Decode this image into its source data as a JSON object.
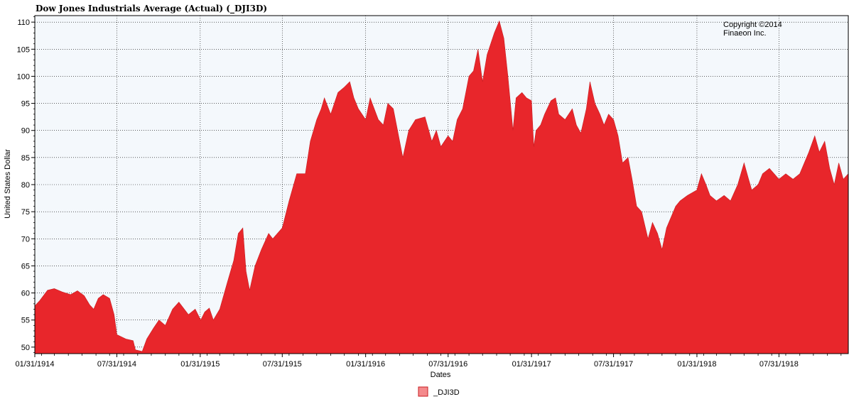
{
  "chart_data": {
    "type": "area",
    "title": "Dow Jones Industrials Average (Actual) (_DJI3D)",
    "xlabel": "Dates",
    "ylabel": "United States Dollar",
    "copyright": [
      "Copyright ©2014",
      "Finaeon Inc."
    ],
    "ylim": [
      48.8,
      111.2
    ],
    "xlim": [
      "1914-01-31",
      "1918-12-31"
    ],
    "yticks": [
      50,
      55,
      60,
      65,
      70,
      75,
      80,
      85,
      90,
      95,
      100,
      105,
      110
    ],
    "xticks": [
      "01/31/1914",
      "07/31/1914",
      "01/31/1915",
      "07/31/1915",
      "01/31/1916",
      "07/31/1916",
      "01/31/1917",
      "07/31/1917",
      "01/31/1918",
      "07/31/1918"
    ],
    "grid": true,
    "legend_placement": "bottom-center",
    "colors": {
      "fill": "#e8262b",
      "legend_swatch": "#f48a8c",
      "plot_bg": "#f4f8fc"
    },
    "series": [
      {
        "name": "_DJI3D",
        "points": [
          [
            "1914-01-31",
            57.6
          ],
          [
            "1914-02-10",
            58.5
          ],
          [
            "1914-02-28",
            60.5
          ],
          [
            "1914-03-15",
            60.8
          ],
          [
            "1914-04-01",
            60.2
          ],
          [
            "1914-04-20",
            59.7
          ],
          [
            "1914-05-05",
            60.4
          ],
          [
            "1914-05-20",
            59.5
          ],
          [
            "1914-06-01",
            57.8
          ],
          [
            "1914-06-10",
            57.0
          ],
          [
            "1914-06-20",
            59.0
          ],
          [
            "1914-07-01",
            59.7
          ],
          [
            "1914-07-15",
            59.0
          ],
          [
            "1914-07-25",
            56.0
          ],
          [
            "1914-07-31",
            52.3
          ],
          [
            "1914-08-20",
            51.5
          ],
          [
            "1914-09-05",
            51.2
          ],
          [
            "1914-09-10",
            49.5
          ],
          [
            "1914-09-25",
            49.2
          ],
          [
            "1914-10-05",
            51.5
          ],
          [
            "1914-10-20",
            53.5
          ],
          [
            "1914-11-01",
            55.0
          ],
          [
            "1914-11-15",
            54.0
          ],
          [
            "1914-12-01",
            57.0
          ],
          [
            "1914-12-15",
            58.3
          ],
          [
            "1915-01-05",
            56.0
          ],
          [
            "1915-01-20",
            57.0
          ],
          [
            "1915-02-01",
            55.0
          ],
          [
            "1915-02-10",
            56.5
          ],
          [
            "1915-02-20",
            57.2
          ],
          [
            "1915-03-01",
            55.0
          ],
          [
            "1915-03-15",
            57.0
          ],
          [
            "1915-04-01",
            62.0
          ],
          [
            "1915-04-15",
            66.0
          ],
          [
            "1915-04-25",
            71.0
          ],
          [
            "1915-05-05",
            72.0
          ],
          [
            "1915-05-12",
            64.0
          ],
          [
            "1915-05-20",
            60.5
          ],
          [
            "1915-06-01",
            65.0
          ],
          [
            "1915-06-15",
            68.0
          ],
          [
            "1915-07-01",
            71.0
          ],
          [
            "1915-07-10",
            70.0
          ],
          [
            "1915-07-31",
            72.0
          ],
          [
            "1915-08-15",
            77.0
          ],
          [
            "1915-09-01",
            82.0
          ],
          [
            "1915-09-20",
            82.0
          ],
          [
            "1915-10-01",
            88.0
          ],
          [
            "1915-10-15",
            92.0
          ],
          [
            "1915-10-25",
            94.0
          ],
          [
            "1915-11-01",
            96.0
          ],
          [
            "1915-11-15",
            93.0
          ],
          [
            "1915-12-01",
            97.0
          ],
          [
            "1915-12-15",
            98.0
          ],
          [
            "1915-12-27",
            99.0
          ],
          [
            "1916-01-05",
            96.0
          ],
          [
            "1916-01-15",
            94.0
          ],
          [
            "1916-01-31",
            92.0
          ],
          [
            "1916-02-10",
            96.0
          ],
          [
            "1916-02-28",
            92.0
          ],
          [
            "1916-03-10",
            91.0
          ],
          [
            "1916-03-20",
            95.0
          ],
          [
            "1916-04-01",
            94.0
          ],
          [
            "1916-04-22",
            85.0
          ],
          [
            "1916-05-05",
            90.0
          ],
          [
            "1916-05-20",
            92.0
          ],
          [
            "1916-06-10",
            92.5
          ],
          [
            "1916-06-25",
            88.0
          ],
          [
            "1916-07-05",
            90.0
          ],
          [
            "1916-07-15",
            87.0
          ],
          [
            "1916-07-31",
            89.0
          ],
          [
            "1916-08-10",
            88.0
          ],
          [
            "1916-08-20",
            92.0
          ],
          [
            "1916-09-01",
            94.0
          ],
          [
            "1916-09-15",
            100.0
          ],
          [
            "1916-09-25",
            101.0
          ],
          [
            "1916-10-05",
            105.0
          ],
          [
            "1916-10-15",
            99.0
          ],
          [
            "1916-10-25",
            104.0
          ],
          [
            "1916-11-10",
            108.0
          ],
          [
            "1916-11-21",
            110.2
          ],
          [
            "1916-12-01",
            107.0
          ],
          [
            "1916-12-10",
            100.0
          ],
          [
            "1916-12-21",
            90.0
          ],
          [
            "1916-12-28",
            96.0
          ],
          [
            "1917-01-10",
            97.0
          ],
          [
            "1917-01-20",
            96.0
          ],
          [
            "1917-01-31",
            95.5
          ],
          [
            "1917-02-05",
            87.0
          ],
          [
            "1917-02-10",
            90.0
          ],
          [
            "1917-02-20",
            91.0
          ],
          [
            "1917-03-01",
            93.0
          ],
          [
            "1917-03-15",
            95.5
          ],
          [
            "1917-03-25",
            96.0
          ],
          [
            "1917-04-01",
            93.0
          ],
          [
            "1917-04-15",
            92.0
          ],
          [
            "1917-05-01",
            94.0
          ],
          [
            "1917-05-10",
            91.0
          ],
          [
            "1917-05-20",
            89.5
          ],
          [
            "1917-06-01",
            94.0
          ],
          [
            "1917-06-09",
            99.0
          ],
          [
            "1917-06-20",
            95.0
          ],
          [
            "1917-07-01",
            93.0
          ],
          [
            "1917-07-10",
            91.0
          ],
          [
            "1917-07-20",
            93.0
          ],
          [
            "1917-07-31",
            92.0
          ],
          [
            "1917-08-10",
            89.0
          ],
          [
            "1917-08-20",
            84.0
          ],
          [
            "1917-09-01",
            85.0
          ],
          [
            "1917-09-10",
            81.0
          ],
          [
            "1917-09-20",
            76.0
          ],
          [
            "1917-10-01",
            75.0
          ],
          [
            "1917-10-15",
            70.0
          ],
          [
            "1917-10-25",
            73.0
          ],
          [
            "1917-11-05",
            71.0
          ],
          [
            "1917-11-15",
            68.0
          ],
          [
            "1917-11-25",
            72.0
          ],
          [
            "1917-12-05",
            74.0
          ],
          [
            "1917-12-15",
            76.0
          ],
          [
            "1917-12-25",
            77.0
          ],
          [
            "1918-01-10",
            78.0
          ],
          [
            "1918-01-31",
            79.0
          ],
          [
            "1918-02-10",
            82.0
          ],
          [
            "1918-02-20",
            80.0
          ],
          [
            "1918-03-01",
            78.0
          ],
          [
            "1918-03-15",
            77.0
          ],
          [
            "1918-04-01",
            78.0
          ],
          [
            "1918-04-15",
            77.0
          ],
          [
            "1918-05-01",
            80.0
          ],
          [
            "1918-05-15",
            84.0
          ],
          [
            "1918-05-25",
            81.0
          ],
          [
            "1918-06-01",
            79.0
          ],
          [
            "1918-06-15",
            80.0
          ],
          [
            "1918-06-25",
            82.0
          ],
          [
            "1918-07-10",
            83.0
          ],
          [
            "1918-07-31",
            81.0
          ],
          [
            "1918-08-15",
            82.0
          ],
          [
            "1918-08-31",
            81.0
          ],
          [
            "1918-09-15",
            82.0
          ],
          [
            "1918-09-25",
            84.0
          ],
          [
            "1918-10-05",
            86.0
          ],
          [
            "1918-10-18",
            89.0
          ],
          [
            "1918-10-28",
            86.0
          ],
          [
            "1918-11-09",
            88.0
          ],
          [
            "1918-11-20",
            83.0
          ],
          [
            "1918-11-30",
            80.0
          ],
          [
            "1918-12-10",
            84.0
          ],
          [
            "1918-12-20",
            81.0
          ],
          [
            "1918-12-31",
            82.0
          ]
        ]
      }
    ]
  }
}
